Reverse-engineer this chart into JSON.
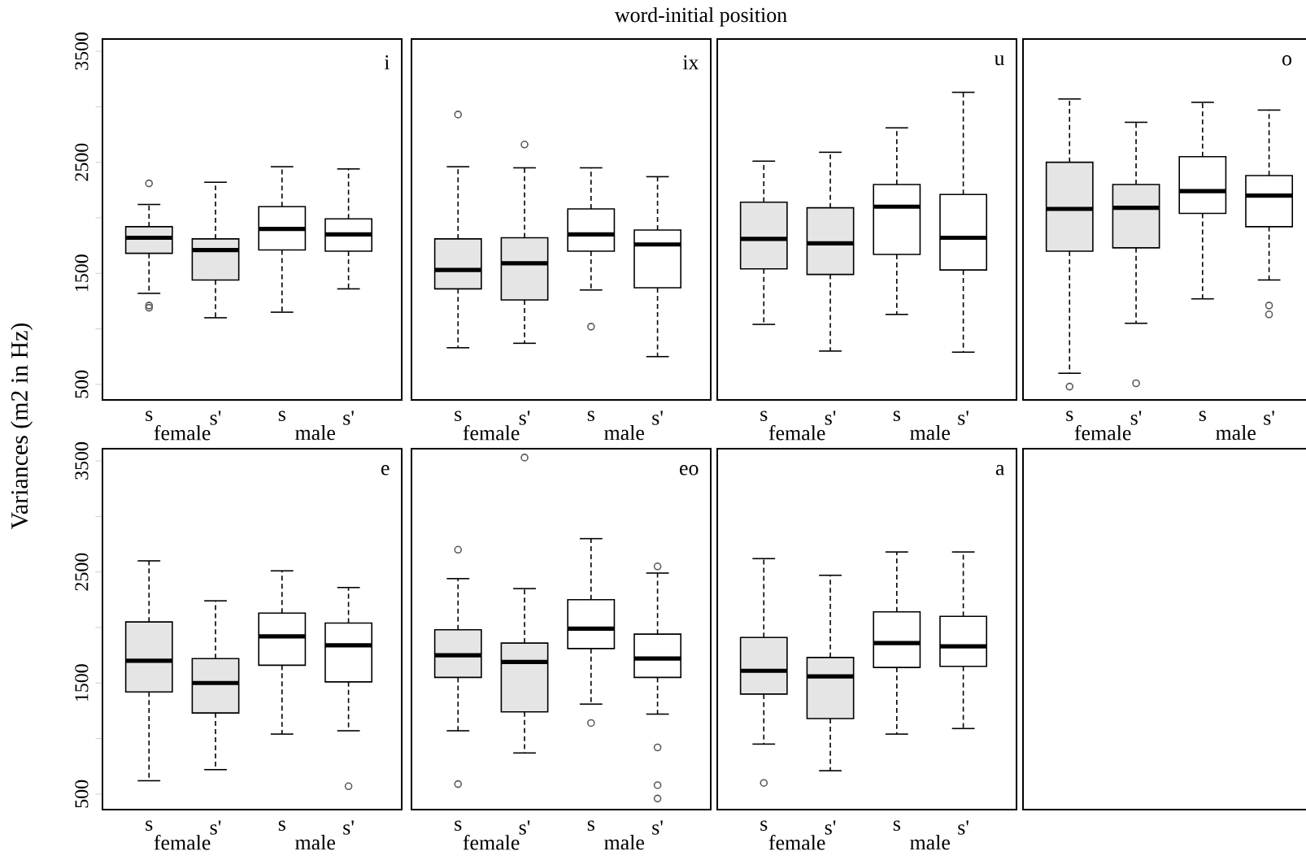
{
  "chart_data": [
    {
      "type": "box",
      "title": "i",
      "ylabel": "Variances (m2 in Hz)",
      "categories": [
        "s",
        "s'",
        "s",
        "s'"
      ],
      "annotations": [
        "female",
        "male"
      ],
      "colors": [
        "#e5e5e5",
        "#e5e5e5",
        "#ffffff",
        "#ffffff"
      ],
      "marker": "circle",
      "ylim": [
        360,
        3610
      ],
      "yticks": [
        500,
        {
          "value": 1000,
          "label": null
        },
        1500,
        {
          "value": 2000,
          "label": null
        },
        2500,
        {
          "value": 3000,
          "label": null
        },
        3500
      ],
      "boxes": [
        {
          "low": 1320,
          "q1": 1680,
          "median": 1820,
          "q3": 1920,
          "high": 2120,
          "outliers": [
            2310,
            1210,
            1190
          ]
        },
        {
          "low": 1100,
          "q1": 1440,
          "median": 1710,
          "q3": 1810,
          "high": 2320
        },
        {
          "low": 1150,
          "q1": 1710,
          "median": 1900,
          "q3": 2100,
          "high": 2460
        },
        {
          "low": 1360,
          "q1": 1700,
          "median": 1850,
          "q3": 1990,
          "high": 2440
        }
      ]
    },
    {
      "type": "box",
      "title": "ix",
      "subtitle": "word-initial position",
      "categories": [
        "s",
        "s'",
        "s",
        "s'"
      ],
      "annotations": [
        "female",
        "male"
      ],
      "colors": [
        "#e5e5e5",
        "#e5e5e5",
        "#ffffff",
        "#ffffff"
      ],
      "marker": "circle",
      "tick_labels": "x",
      "ylim": [
        360,
        3610
      ],
      "boxes": [
        {
          "low": 830,
          "q1": 1360,
          "median": 1530,
          "q3": 1810,
          "high": 2460,
          "outliers": [
            2930
          ]
        },
        {
          "low": 870,
          "q1": 1260,
          "median": 1590,
          "q3": 1820,
          "high": 2450,
          "outliers": [
            2660
          ]
        },
        {
          "low": 1350,
          "q1": 1700,
          "median": 1850,
          "q3": 2080,
          "high": 2450,
          "outliers": [
            1020
          ]
        },
        {
          "low": 750,
          "q1": 1370,
          "median": 1760,
          "q3": 1890,
          "high": 2370
        }
      ]
    },
    {
      "type": "box",
      "title": "u",
      "categories": [
        "s",
        "s'",
        "s",
        "s'"
      ],
      "annotations": [
        "female",
        "male"
      ],
      "colors": [
        "#e5e5e5",
        "#e5e5e5",
        "#ffffff",
        "#ffffff"
      ],
      "marker": "circle",
      "tick_labels": "x",
      "ylim": [
        360,
        3610
      ],
      "boxes": [
        {
          "low": 1040,
          "q1": 1540,
          "median": 1810,
          "q3": 2140,
          "high": 2510
        },
        {
          "low": 800,
          "q1": 1490,
          "median": 1770,
          "q3": 2090,
          "high": 2590
        },
        {
          "low": 1130,
          "q1": 1670,
          "median": 2100,
          "q3": 2300,
          "high": 2810
        },
        {
          "low": 790,
          "q1": 1530,
          "median": 1820,
          "q3": 2210,
          "high": 3130
        }
      ]
    },
    {
      "type": "box",
      "title": "o",
      "categories": [
        "s",
        "s'",
        "s",
        "s'"
      ],
      "annotations": [
        "female",
        "male"
      ],
      "colors": [
        "#e5e5e5",
        "#e5e5e5",
        "#ffffff",
        "#ffffff"
      ],
      "marker": "circle",
      "tick_labels": "x",
      "ylim": [
        360,
        3610
      ],
      "boxes": [
        {
          "low": 600,
          "q1": 1700,
          "median": 2080,
          "q3": 2500,
          "high": 3070,
          "outliers": [
            480
          ]
        },
        {
          "low": 1050,
          "q1": 1730,
          "median": 2090,
          "q3": 2300,
          "high": 2860,
          "outliers": [
            510
          ]
        },
        {
          "low": 1270,
          "q1": 2040,
          "median": 2240,
          "q3": 2550,
          "high": 3040
        },
        {
          "low": 1440,
          "q1": 1920,
          "median": 2200,
          "q3": 2380,
          "high": 2970,
          "outliers": [
            1210,
            1130
          ]
        }
      ]
    },
    {
      "type": "box",
      "title": "e",
      "categories": [
        "s",
        "s'",
        "s",
        "s'"
      ],
      "annotations": [
        "female",
        "male"
      ],
      "colors": [
        "#e5e5e5",
        "#e5e5e5",
        "#ffffff",
        "#ffffff"
      ],
      "marker": "circle",
      "ylim": [
        360,
        3610
      ],
      "yticks": [
        500,
        {
          "value": 1000,
          "label": null
        },
        1500,
        {
          "value": 2000,
          "label": null
        },
        2500,
        {
          "value": 3000,
          "label": null
        },
        3500
      ],
      "boxes": [
        {
          "low": 620,
          "q1": 1420,
          "median": 1700,
          "q3": 2050,
          "high": 2600
        },
        {
          "low": 720,
          "q1": 1230,
          "median": 1500,
          "q3": 1720,
          "high": 2240
        },
        {
          "low": 1040,
          "q1": 1660,
          "median": 1920,
          "q3": 2130,
          "high": 2510
        },
        {
          "low": 1070,
          "q1": 1510,
          "median": 1840,
          "q3": 2040,
          "high": 2360,
          "outliers": [
            570
          ]
        }
      ]
    },
    {
      "type": "box",
      "title": "eo",
      "categories": [
        "s",
        "s'",
        "s",
        "s'"
      ],
      "annotations": [
        "female",
        "male"
      ],
      "colors": [
        "#e5e5e5",
        "#e5e5e5",
        "#ffffff",
        "#ffffff"
      ],
      "marker": "circle",
      "tick_labels": "x",
      "ylim": [
        360,
        3610
      ],
      "boxes": [
        {
          "low": 1070,
          "q1": 1550,
          "median": 1750,
          "q3": 1980,
          "high": 2440,
          "outliers": [
            2700,
            590
          ]
        },
        {
          "low": 870,
          "q1": 1240,
          "median": 1690,
          "q3": 1860,
          "high": 2350,
          "outliers": [
            3530
          ]
        },
        {
          "low": 1310,
          "q1": 1810,
          "median": 1990,
          "q3": 2250,
          "high": 2800,
          "outliers": [
            1140
          ]
        },
        {
          "low": 1220,
          "q1": 1550,
          "median": 1720,
          "q3": 1940,
          "high": 2490,
          "outliers": [
            2550,
            920,
            580,
            460
          ]
        }
      ]
    },
    {
      "type": "box",
      "title": "a",
      "categories": [
        "s",
        "s'",
        "s",
        "s'"
      ],
      "annotations": [
        "female",
        "male"
      ],
      "colors": [
        "#e5e5e5",
        "#e5e5e5",
        "#ffffff",
        "#ffffff"
      ],
      "marker": "circle",
      "tick_labels": "x",
      "ylim": [
        360,
        3610
      ],
      "boxes": [
        {
          "low": 950,
          "q1": 1400,
          "median": 1610,
          "q3": 1910,
          "high": 2620,
          "outliers": [
            600
          ]
        },
        {
          "low": 710,
          "q1": 1180,
          "median": 1560,
          "q3": 1730,
          "high": 2470
        },
        {
          "low": 1040,
          "q1": 1640,
          "median": 1860,
          "q3": 2140,
          "high": 2680
        },
        {
          "low": 1090,
          "q1": 1650,
          "median": 1830,
          "q3": 2100,
          "high": 2680
        }
      ]
    }
  ]
}
